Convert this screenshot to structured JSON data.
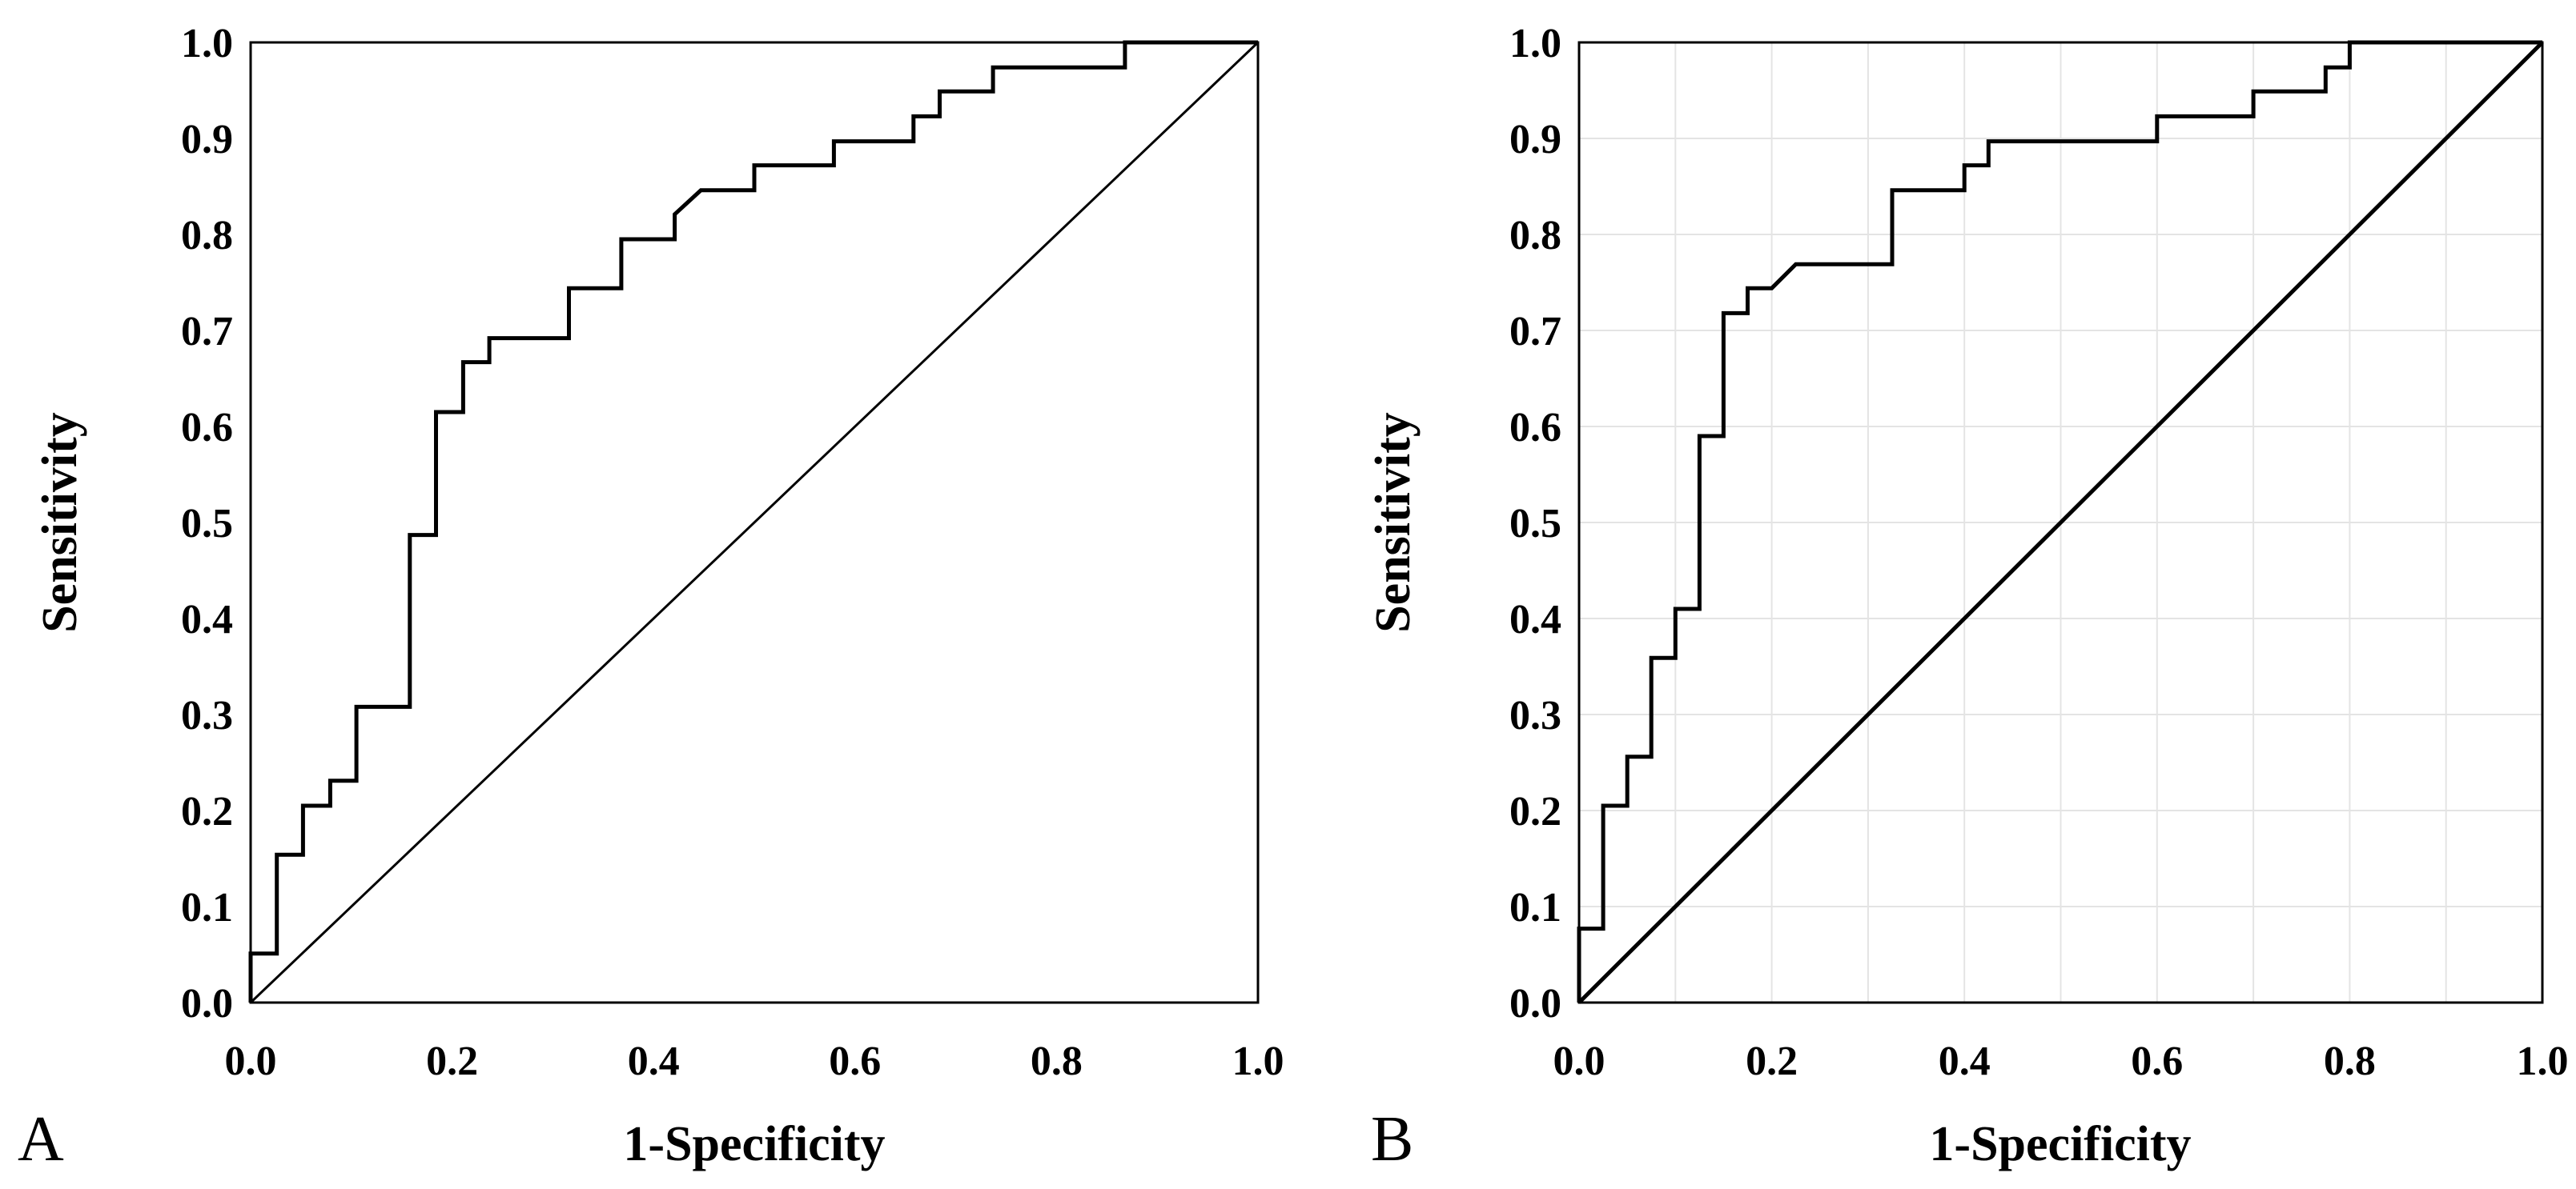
{
  "chart_data": [
    {
      "type": "line",
      "panel_label": "A",
      "xlabel": "1-Specificity",
      "ylabel": "Sensitivity",
      "xlim": [
        0,
        1
      ],
      "ylim": [
        0,
        1
      ],
      "xticks": [
        "0.0",
        "0.2",
        "0.4",
        "0.6",
        "0.8",
        "1.0"
      ],
      "yticks": [
        "0.0",
        "0.1",
        "0.2",
        "0.3",
        "0.4",
        "0.5",
        "0.6",
        "0.7",
        "0.8",
        "0.9",
        "1.0"
      ],
      "grid": false,
      "series": [
        {
          "name": "ROC curve",
          "x": [
            0,
            0,
            0.026,
            0.026,
            0.052,
            0.052,
            0.079,
            0.079,
            0.105,
            0.105,
            0.158,
            0.158,
            0.184,
            0.184,
            0.211,
            0.211,
            0.237,
            0.237,
            0.316,
            0.316,
            0.368,
            0.368,
            0.421,
            0.421,
            0.447,
            0.447,
            0.5,
            0.5,
            0.579,
            0.579,
            0.658,
            0.658,
            0.684,
            0.684,
            0.737,
            0.737,
            0.868,
            0.868,
            1.0
          ],
          "y": [
            0,
            0.051,
            0.051,
            0.154,
            0.154,
            0.205,
            0.205,
            0.231,
            0.231,
            0.308,
            0.308,
            0.487,
            0.487,
            0.615,
            0.615,
            0.667,
            0.667,
            0.692,
            0.692,
            0.744,
            0.744,
            0.795,
            0.795,
            0.821,
            0.846,
            0.846,
            0.846,
            0.872,
            0.872,
            0.897,
            0.897,
            0.923,
            0.923,
            0.949,
            0.949,
            0.974,
            0.974,
            1.0,
            1.0
          ]
        },
        {
          "name": "Reference line",
          "x": [
            0,
            1
          ],
          "y": [
            0,
            1
          ]
        }
      ]
    },
    {
      "type": "line",
      "panel_label": "B",
      "xlabel": "1-Specificity",
      "ylabel": "Sensitivity",
      "xlim": [
        0,
        1
      ],
      "ylim": [
        0,
        1
      ],
      "xticks": [
        "0.0",
        "0.2",
        "0.4",
        "0.6",
        "0.8",
        "1.0"
      ],
      "yticks": [
        "0.0",
        "0.1",
        "0.2",
        "0.3",
        "0.4",
        "0.5",
        "0.6",
        "0.7",
        "0.8",
        "0.9",
        "1.0"
      ],
      "grid": true,
      "series": [
        {
          "name": "ROC curve",
          "x": [
            0,
            0,
            0.025,
            0.025,
            0.05,
            0.05,
            0.075,
            0.075,
            0.1,
            0.1,
            0.125,
            0.125,
            0.15,
            0.15,
            0.175,
            0.175,
            0.2,
            0.225,
            0.325,
            0.325,
            0.4,
            0.4,
            0.425,
            0.425,
            0.6,
            0.6,
            0.7,
            0.7,
            0.775,
            0.775,
            0.8,
            0.8,
            1.0
          ],
          "y": [
            0,
            0.077,
            0.077,
            0.205,
            0.205,
            0.256,
            0.256,
            0.359,
            0.359,
            0.41,
            0.41,
            0.59,
            0.59,
            0.718,
            0.718,
            0.744,
            0.744,
            0.769,
            0.769,
            0.846,
            0.846,
            0.872,
            0.872,
            0.897,
            0.897,
            0.923,
            0.923,
            0.949,
            0.949,
            0.974,
            0.974,
            1.0,
            1.0
          ]
        },
        {
          "name": "Reference line",
          "x": [
            0,
            1
          ],
          "y": [
            0,
            1
          ]
        }
      ]
    }
  ]
}
